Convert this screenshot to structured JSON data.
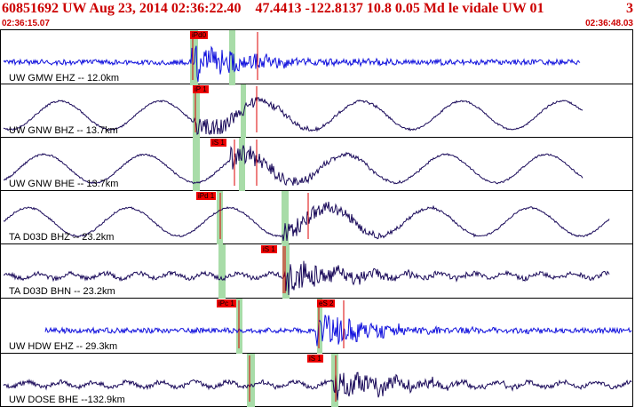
{
  "header": {
    "title": "60851692 UW Aug 23, 2014 02:36:22.40    47.4413 -122.8137 10.8 0.05 Md le vidale UW 01",
    "extra": "3",
    "start_time": "02:36:15.07",
    "end_time": "02:36:48.03"
  },
  "colors": {
    "header_text": "#cc0000",
    "trace_blue": "#1010dd",
    "trace_dark": "#1a0a5a",
    "pick_line": "#dd0000",
    "window_band": "#a8dca8"
  },
  "traces": [
    {
      "label": "UW GMW EHZ -- 12.0km",
      "color": "blue",
      "pick": "iPd0",
      "style": "hf"
    },
    {
      "label": "UW GNW BHZ -- 13.7km",
      "color": "dark",
      "pick": "iP 1",
      "style": "lf"
    },
    {
      "label": "UW GNW BHE -- 13.7km",
      "color": "dark",
      "pick": "iS 1",
      "style": "lf"
    },
    {
      "label": "TA D03D BHZ -- 23.2km",
      "color": "dark",
      "pick": "iPd 1",
      "style": "lf"
    },
    {
      "label": "TA D03D BHN -- 23.2km",
      "color": "dark",
      "pick": "iS 1",
      "style": "mf"
    },
    {
      "label": "UW HDW EHZ -- 29.3km",
      "color": "blue",
      "pick": "iPc 1",
      "picks2": "eS 2",
      "style": "hf"
    },
    {
      "label": "UW DOSE BHE --132.9km",
      "color": "dark",
      "pick": "iS 1",
      "style": "mf"
    }
  ]
}
